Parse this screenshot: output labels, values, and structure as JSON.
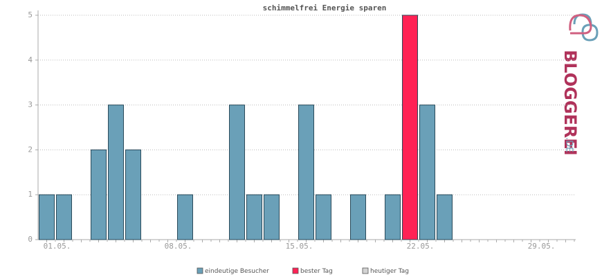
{
  "chart_data": {
    "type": "bar",
    "title": "schimmelfrei Energie sparen",
    "categories": [
      "01.05.",
      null,
      null,
      null,
      null,
      null,
      null,
      "08.05.",
      null,
      null,
      null,
      null,
      null,
      null,
      "15.05.",
      null,
      null,
      null,
      null,
      null,
      null,
      "22.05.",
      null,
      null,
      null,
      null,
      null,
      null,
      "29.05.",
      null,
      null
    ],
    "series": [
      {
        "name": "eindeutige Besucher",
        "color": "#6aa0b8",
        "values": [
          1,
          1,
          0,
          2,
          3,
          2,
          0,
          0,
          1,
          0,
          0,
          3,
          1,
          1,
          0,
          3,
          1,
          0,
          1,
          0,
          1,
          null,
          3,
          1,
          0,
          0,
          0,
          0,
          0,
          0,
          0
        ]
      },
      {
        "name": "bester Tag",
        "color": "#ff2255",
        "values": [
          null,
          null,
          null,
          null,
          null,
          null,
          null,
          null,
          null,
          null,
          null,
          null,
          null,
          null,
          null,
          null,
          null,
          null,
          null,
          null,
          null,
          5,
          null,
          null,
          null,
          null,
          null,
          null,
          null,
          null,
          null
        ]
      },
      {
        "name": "heutiger Tag",
        "color": "#d3d3d3",
        "values": [
          null,
          null,
          null,
          null,
          null,
          null,
          null,
          null,
          null,
          null,
          null,
          null,
          null,
          null,
          null,
          null,
          null,
          null,
          null,
          null,
          null,
          null,
          null,
          null,
          null,
          null,
          null,
          null,
          null,
          null,
          null
        ]
      }
    ],
    "ylim": [
      0,
      5
    ],
    "yticks": [
      0,
      1,
      2,
      3,
      4,
      5
    ],
    "grid": true,
    "logo": {
      "text": "BLOGGEREI",
      "suffix": ".DE"
    }
  }
}
